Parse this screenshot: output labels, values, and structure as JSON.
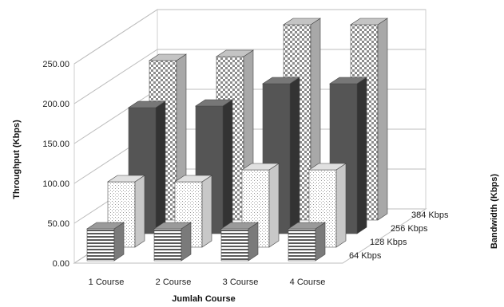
{
  "chart_data": {
    "type": "bar",
    "title": "",
    "xlabel": "Jumlah Course",
    "ylabel": "Throughput (Kbps)",
    "zlabel": "Bandwidth (Kbps)",
    "categories": [
      "1 Course",
      "2 Course",
      "3 Course",
      "4 Course"
    ],
    "y_ticks": [
      "0.00",
      "50.00",
      "100.00",
      "150.00",
      "200.00",
      "250.00"
    ],
    "ylim": [
      0,
      250
    ],
    "grid": true,
    "series": [
      {
        "name": "64 Kbps",
        "values": [
          40,
          40,
          40,
          40
        ],
        "color": "#d8d8d8"
      },
      {
        "name": "128 Kbps",
        "values": [
          82,
          82,
          97,
          97
        ],
        "color": "#f2f2f2"
      },
      {
        "name": "256 Kbps",
        "values": [
          158,
          160,
          188,
          188
        ],
        "color": "#555555"
      },
      {
        "name": "384 Kbps",
        "values": [
          200,
          205,
          245,
          245
        ],
        "color": "#bdbdbd"
      }
    ]
  }
}
